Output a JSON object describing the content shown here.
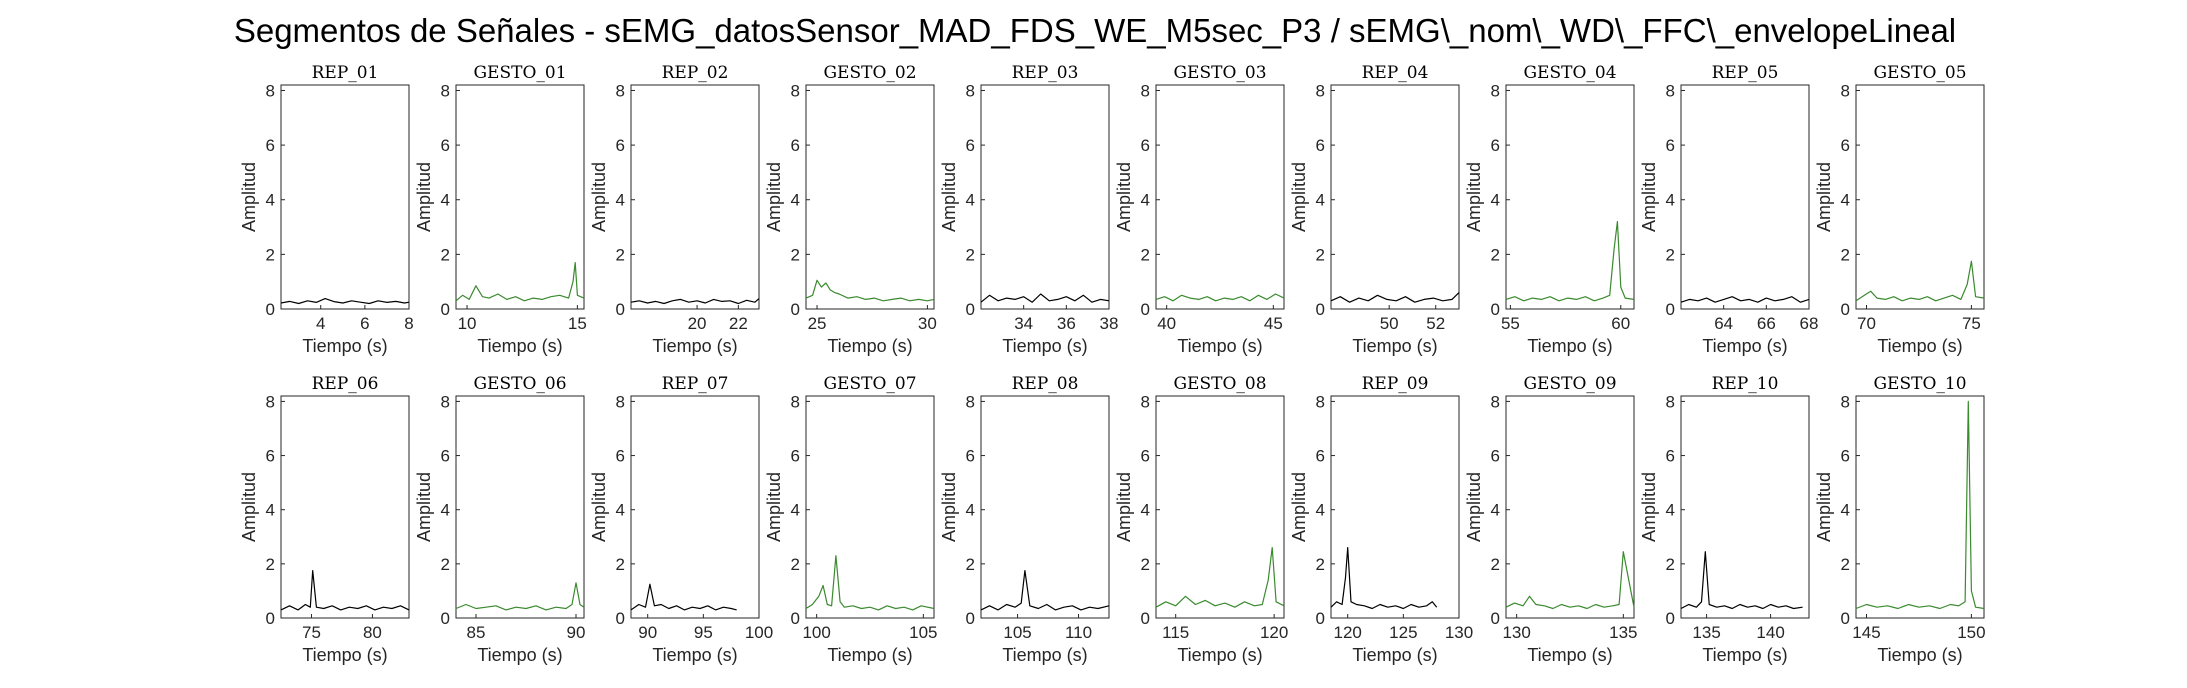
{
  "figure": {
    "title": "Segmentos de Señales - sEMG_datosSensor_MAD_FDS_WE_M5sec_P3 / sEMG\\_nom\\_WD\\_FFC\\_envelopeLineal"
  },
  "colors": {
    "rep": "#000000",
    "gesto": "#3a8a2e",
    "axis": "#262626"
  },
  "chart_data": [
    {
      "type": "line",
      "title": "REP_01",
      "xlabel": "Tiempo (s)",
      "ylabel": "Amplitud",
      "xlim": [
        2.2,
        8
      ],
      "ylim": [
        0,
        8.2
      ],
      "xticks": [
        4,
        6,
        8
      ],
      "yticks": [
        0,
        2,
        4,
        6,
        8
      ],
      "color": "#000000",
      "x": [
        2.2,
        2.6,
        3.0,
        3.4,
        3.8,
        4.2,
        4.6,
        5.0,
        5.4,
        5.8,
        6.2,
        6.6,
        7.0,
        7.4,
        7.8,
        8.0
      ],
      "y": [
        0.22,
        0.28,
        0.2,
        0.3,
        0.24,
        0.38,
        0.27,
        0.22,
        0.3,
        0.25,
        0.2,
        0.3,
        0.24,
        0.28,
        0.22,
        0.25
      ]
    },
    {
      "type": "line",
      "title": "GESTO_01",
      "xlabel": "Tiempo (s)",
      "ylabel": "Amplitud",
      "xlim": [
        9.5,
        15.3
      ],
      "ylim": [
        0,
        8.2
      ],
      "xticks": [
        10,
        15
      ],
      "yticks": [
        0,
        2,
        4,
        6,
        8
      ],
      "color": "#3a8a2e",
      "x": [
        9.5,
        9.8,
        10.1,
        10.4,
        10.7,
        11.0,
        11.4,
        11.8,
        12.2,
        12.6,
        13.0,
        13.4,
        13.8,
        14.2,
        14.6,
        14.8,
        14.9,
        15.0,
        15.3
      ],
      "y": [
        0.3,
        0.5,
        0.35,
        0.85,
        0.45,
        0.4,
        0.55,
        0.35,
        0.45,
        0.3,
        0.4,
        0.35,
        0.45,
        0.5,
        0.4,
        1.0,
        1.7,
        0.5,
        0.4
      ]
    },
    {
      "type": "line",
      "title": "REP_02",
      "xlabel": "Tiempo (s)",
      "ylabel": "Amplitud",
      "xlim": [
        16.8,
        23
      ],
      "ylim": [
        0,
        8.2
      ],
      "xticks": [
        20,
        22
      ],
      "yticks": [
        0,
        2,
        4,
        6,
        8
      ],
      "color": "#000000",
      "x": [
        16.8,
        17.2,
        17.6,
        18.0,
        18.4,
        18.8,
        19.2,
        19.6,
        20.0,
        20.4,
        20.8,
        21.2,
        21.6,
        22.0,
        22.4,
        22.8,
        23.0
      ],
      "y": [
        0.25,
        0.3,
        0.22,
        0.28,
        0.2,
        0.3,
        0.35,
        0.25,
        0.3,
        0.22,
        0.35,
        0.28,
        0.3,
        0.2,
        0.32,
        0.25,
        0.38
      ]
    },
    {
      "type": "line",
      "title": "GESTO_02",
      "xlabel": "Tiempo (s)",
      "ylabel": "Amplitud",
      "xlim": [
        24.5,
        30.3
      ],
      "ylim": [
        0,
        8.2
      ],
      "xticks": [
        25,
        30
      ],
      "yticks": [
        0,
        2,
        4,
        6,
        8
      ],
      "color": "#3a8a2e",
      "x": [
        24.5,
        24.8,
        25.0,
        25.2,
        25.4,
        25.6,
        25.8,
        26.0,
        26.4,
        26.8,
        27.2,
        27.6,
        28.0,
        28.4,
        28.8,
        29.2,
        29.6,
        30.0,
        30.3
      ],
      "y": [
        0.4,
        0.5,
        1.05,
        0.8,
        0.95,
        0.7,
        0.6,
        0.55,
        0.4,
        0.45,
        0.35,
        0.4,
        0.3,
        0.35,
        0.4,
        0.3,
        0.35,
        0.3,
        0.35
      ]
    },
    {
      "type": "line",
      "title": "REP_03",
      "xlabel": "Tiempo (s)",
      "ylabel": "Amplitud",
      "xlim": [
        32,
        38
      ],
      "ylim": [
        0,
        8.2
      ],
      "xticks": [
        34,
        36,
        38
      ],
      "yticks": [
        0,
        2,
        4,
        6,
        8
      ],
      "color": "#000000",
      "x": [
        32,
        32.4,
        32.8,
        33.2,
        33.6,
        34.0,
        34.4,
        34.8,
        35.2,
        35.6,
        36.0,
        36.4,
        36.8,
        37.2,
        37.6,
        38.0
      ],
      "y": [
        0.25,
        0.5,
        0.3,
        0.4,
        0.35,
        0.45,
        0.25,
        0.55,
        0.3,
        0.35,
        0.45,
        0.3,
        0.5,
        0.25,
        0.35,
        0.3
      ]
    },
    {
      "type": "line",
      "title": "GESTO_03",
      "xlabel": "Tiempo (s)",
      "ylabel": "Amplitud",
      "xlim": [
        39.5,
        45.5
      ],
      "ylim": [
        0,
        8.2
      ],
      "xticks": [
        40,
        45
      ],
      "yticks": [
        0,
        2,
        4,
        6,
        8
      ],
      "color": "#3a8a2e",
      "x": [
        39.5,
        39.9,
        40.3,
        40.7,
        41.1,
        41.5,
        41.9,
        42.3,
        42.7,
        43.1,
        43.5,
        43.9,
        44.3,
        44.7,
        45.1,
        45.5
      ],
      "y": [
        0.35,
        0.45,
        0.3,
        0.5,
        0.4,
        0.35,
        0.45,
        0.3,
        0.4,
        0.35,
        0.45,
        0.3,
        0.5,
        0.35,
        0.55,
        0.4
      ]
    },
    {
      "type": "line",
      "title": "REP_04",
      "xlabel": "Tiempo (s)",
      "ylabel": "Amplitud",
      "xlim": [
        47.5,
        53
      ],
      "ylim": [
        0,
        8.2
      ],
      "xticks": [
        50,
        52
      ],
      "yticks": [
        0,
        2,
        4,
        6,
        8
      ],
      "color": "#000000",
      "x": [
        47.5,
        47.9,
        48.3,
        48.7,
        49.1,
        49.5,
        49.9,
        50.3,
        50.7,
        51.1,
        51.5,
        51.9,
        52.3,
        52.7,
        53.0
      ],
      "y": [
        0.3,
        0.45,
        0.25,
        0.4,
        0.3,
        0.5,
        0.35,
        0.3,
        0.45,
        0.25,
        0.35,
        0.4,
        0.3,
        0.35,
        0.6
      ]
    },
    {
      "type": "line",
      "title": "GESTO_04",
      "xlabel": "Tiempo (s)",
      "ylabel": "Amplitud",
      "xlim": [
        54.8,
        60.6
      ],
      "ylim": [
        0,
        8.2
      ],
      "xticks": [
        55,
        60
      ],
      "yticks": [
        0,
        2,
        4,
        6,
        8
      ],
      "color": "#3a8a2e",
      "x": [
        54.8,
        55.2,
        55.6,
        56.0,
        56.4,
        56.8,
        57.2,
        57.6,
        58.0,
        58.4,
        58.8,
        59.2,
        59.5,
        59.7,
        59.85,
        60.0,
        60.2,
        60.6
      ],
      "y": [
        0.35,
        0.45,
        0.3,
        0.4,
        0.35,
        0.45,
        0.3,
        0.4,
        0.35,
        0.45,
        0.3,
        0.4,
        0.5,
        2.2,
        3.2,
        0.8,
        0.4,
        0.35
      ]
    },
    {
      "type": "line",
      "title": "REP_05",
      "xlabel": "Tiempo (s)",
      "ylabel": "Amplitud",
      "xlim": [
        62,
        68
      ],
      "ylim": [
        0,
        8.2
      ],
      "xticks": [
        64,
        66,
        68
      ],
      "yticks": [
        0,
        2,
        4,
        6,
        8
      ],
      "color": "#000000",
      "x": [
        62,
        62.4,
        62.8,
        63.2,
        63.6,
        64.0,
        64.4,
        64.8,
        65.2,
        65.6,
        66.0,
        66.4,
        66.8,
        67.2,
        67.6,
        68.0
      ],
      "y": [
        0.25,
        0.35,
        0.3,
        0.4,
        0.25,
        0.35,
        0.45,
        0.3,
        0.35,
        0.25,
        0.4,
        0.3,
        0.35,
        0.45,
        0.25,
        0.35
      ]
    },
    {
      "type": "line",
      "title": "GESTO_05",
      "xlabel": "Tiempo (s)",
      "ylabel": "Amplitud",
      "xlim": [
        69.5,
        75.6
      ],
      "ylim": [
        0,
        8.2
      ],
      "xticks": [
        70,
        75
      ],
      "yticks": [
        0,
        2,
        4,
        6,
        8
      ],
      "color": "#3a8a2e",
      "x": [
        69.5,
        69.9,
        70.2,
        70.5,
        70.9,
        71.3,
        71.7,
        72.1,
        72.5,
        72.9,
        73.3,
        73.7,
        74.1,
        74.5,
        74.8,
        75.0,
        75.2,
        75.6
      ],
      "y": [
        0.3,
        0.5,
        0.65,
        0.4,
        0.35,
        0.45,
        0.3,
        0.4,
        0.35,
        0.45,
        0.3,
        0.4,
        0.5,
        0.35,
        0.9,
        1.75,
        0.45,
        0.4
      ]
    },
    {
      "type": "line",
      "title": "REP_06",
      "xlabel": "Tiempo (s)",
      "ylabel": "Amplitud",
      "xlim": [
        72.5,
        83
      ],
      "ylim": [
        0,
        8.2
      ],
      "xticks": [
        75,
        80
      ],
      "yticks": [
        0,
        2,
        4,
        6,
        8
      ],
      "color": "#000000",
      "x": [
        72.5,
        73.2,
        73.9,
        74.5,
        74.9,
        75.1,
        75.4,
        76.0,
        76.7,
        77.4,
        78.1,
        78.8,
        79.5,
        80.2,
        80.9,
        81.6,
        82.3,
        83.0
      ],
      "y": [
        0.3,
        0.45,
        0.3,
        0.5,
        0.4,
        1.75,
        0.4,
        0.35,
        0.45,
        0.3,
        0.4,
        0.35,
        0.45,
        0.3,
        0.4,
        0.35,
        0.45,
        0.3
      ]
    },
    {
      "type": "line",
      "title": "GESTO_06",
      "xlabel": "Tiempo (s)",
      "ylabel": "Amplitud",
      "xlim": [
        84,
        90.4
      ],
      "ylim": [
        0,
        8.2
      ],
      "xticks": [
        85,
        90
      ],
      "yticks": [
        0,
        2,
        4,
        6,
        8
      ],
      "color": "#3a8a2e",
      "x": [
        84,
        84.5,
        85,
        85.5,
        86,
        86.5,
        87,
        87.5,
        88,
        88.5,
        89,
        89.5,
        89.8,
        90.0,
        90.2,
        90.4
      ],
      "y": [
        0.35,
        0.5,
        0.35,
        0.4,
        0.45,
        0.3,
        0.4,
        0.35,
        0.45,
        0.3,
        0.4,
        0.35,
        0.5,
        1.3,
        0.5,
        0.4
      ]
    },
    {
      "type": "line",
      "title": "REP_07",
      "xlabel": "Tiempo (s)",
      "ylabel": "Amplitud",
      "xlim": [
        88.5,
        100
      ],
      "ylim": [
        0,
        8.2
      ],
      "xticks": [
        90,
        95,
        100
      ],
      "yticks": [
        0,
        2,
        4,
        6,
        8
      ],
      "color": "#000000",
      "x": [
        88.5,
        89.2,
        89.8,
        90.2,
        90.6,
        91.2,
        91.9,
        92.6,
        93.3,
        94.0,
        94.7,
        95.4,
        96.1,
        96.8,
        97.5,
        98.0
      ],
      "y": [
        0.3,
        0.5,
        0.4,
        1.25,
        0.45,
        0.5,
        0.35,
        0.45,
        0.3,
        0.4,
        0.35,
        0.45,
        0.3,
        0.4,
        0.35,
        0.3
      ]
    },
    {
      "type": "line",
      "title": "GESTO_07",
      "xlabel": "Tiempo (s)",
      "ylabel": "Amplitud",
      "xlim": [
        99.5,
        105.5
      ],
      "ylim": [
        0,
        8.2
      ],
      "xticks": [
        100,
        105
      ],
      "yticks": [
        0,
        2,
        4,
        6,
        8
      ],
      "color": "#3a8a2e",
      "x": [
        99.5,
        99.8,
        100.1,
        100.3,
        100.5,
        100.7,
        100.9,
        101.1,
        101.3,
        101.7,
        102.1,
        102.5,
        102.9,
        103.3,
        103.7,
        104.1,
        104.5,
        104.9,
        105.5
      ],
      "y": [
        0.35,
        0.5,
        0.8,
        1.2,
        0.5,
        0.45,
        2.3,
        0.6,
        0.4,
        0.45,
        0.35,
        0.4,
        0.3,
        0.45,
        0.35,
        0.4,
        0.3,
        0.45,
        0.35
      ]
    },
    {
      "type": "line",
      "title": "REP_08",
      "xlabel": "Tiempo (s)",
      "ylabel": "Amplitud",
      "xlim": [
        102,
        112.5
      ],
      "ylim": [
        0,
        8.2
      ],
      "xticks": [
        105,
        110
      ],
      "yticks": [
        0,
        2,
        4,
        6,
        8
      ],
      "color": "#000000",
      "x": [
        102,
        102.7,
        103.4,
        104.1,
        104.8,
        105.3,
        105.6,
        106.0,
        106.7,
        107.4,
        108.1,
        108.8,
        109.5,
        110.2,
        110.9,
        111.6,
        112.5
      ],
      "y": [
        0.3,
        0.45,
        0.3,
        0.5,
        0.4,
        0.55,
        1.75,
        0.45,
        0.35,
        0.5,
        0.3,
        0.4,
        0.45,
        0.3,
        0.4,
        0.35,
        0.45
      ]
    },
    {
      "type": "line",
      "title": "GESTO_08",
      "xlabel": "Tiempo (s)",
      "ylabel": "Amplitud",
      "xlim": [
        114,
        120.5
      ],
      "ylim": [
        0,
        8.2
      ],
      "xticks": [
        115,
        120
      ],
      "yticks": [
        0,
        2,
        4,
        6,
        8
      ],
      "color": "#3a8a2e",
      "x": [
        114,
        114.5,
        115,
        115.5,
        116,
        116.5,
        117,
        117.5,
        118,
        118.5,
        119,
        119.4,
        119.7,
        119.9,
        120.1,
        120.5
      ],
      "y": [
        0.4,
        0.6,
        0.45,
        0.8,
        0.5,
        0.65,
        0.45,
        0.55,
        0.4,
        0.6,
        0.45,
        0.5,
        1.4,
        2.6,
        0.6,
        0.45
      ]
    },
    {
      "type": "line",
      "title": "REP_09",
      "xlabel": "Tiempo (s)",
      "ylabel": "Amplitud",
      "xlim": [
        118.5,
        130
      ],
      "ylim": [
        0,
        8.2
      ],
      "xticks": [
        120,
        125,
        130
      ],
      "yticks": [
        0,
        2,
        4,
        6,
        8
      ],
      "color": "#000000",
      "x": [
        118.5,
        119.0,
        119.5,
        119.8,
        120.0,
        120.3,
        120.8,
        121.5,
        122.2,
        122.9,
        123.6,
        124.3,
        125.0,
        125.7,
        126.4,
        127.1,
        127.6,
        128.0
      ],
      "y": [
        0.4,
        0.6,
        0.5,
        1.5,
        2.6,
        0.6,
        0.5,
        0.45,
        0.35,
        0.5,
        0.4,
        0.45,
        0.35,
        0.5,
        0.4,
        0.45,
        0.6,
        0.4
      ]
    },
    {
      "type": "line",
      "title": "GESTO_09",
      "xlabel": "Tiempo (s)",
      "ylabel": "Amplitud",
      "xlim": [
        129.5,
        135.5
      ],
      "ylim": [
        0,
        8.2
      ],
      "xticks": [
        130,
        135
      ],
      "yticks": [
        0,
        2,
        4,
        6,
        8
      ],
      "color": "#3a8a2e",
      "x": [
        129.5,
        129.9,
        130.3,
        130.6,
        130.9,
        131.3,
        131.7,
        132.1,
        132.5,
        132.9,
        133.3,
        133.7,
        134.1,
        134.5,
        134.8,
        135.0,
        135.5
      ],
      "y": [
        0.4,
        0.55,
        0.45,
        0.8,
        0.5,
        0.45,
        0.35,
        0.5,
        0.4,
        0.45,
        0.35,
        0.5,
        0.4,
        0.45,
        0.5,
        2.45,
        0.4
      ]
    },
    {
      "type": "line",
      "title": "REP_10",
      "xlabel": "Tiempo (s)",
      "ylabel": "Amplitud",
      "xlim": [
        133,
        143
      ],
      "ylim": [
        0,
        8.2
      ],
      "xticks": [
        135,
        140
      ],
      "yticks": [
        0,
        2,
        4,
        6,
        8
      ],
      "color": "#000000",
      "x": [
        133,
        133.6,
        134.2,
        134.6,
        134.9,
        135.2,
        135.8,
        136.4,
        137.0,
        137.6,
        138.2,
        138.8,
        139.4,
        140.0,
        140.6,
        141.2,
        141.8,
        142.5
      ],
      "y": [
        0.35,
        0.5,
        0.4,
        0.6,
        2.45,
        0.5,
        0.4,
        0.45,
        0.35,
        0.5,
        0.4,
        0.45,
        0.35,
        0.5,
        0.4,
        0.45,
        0.35,
        0.4
      ]
    },
    {
      "type": "line",
      "title": "GESTO_10",
      "xlabel": "Tiempo (s)",
      "ylabel": "Amplitud",
      "xlim": [
        144.5,
        150.6
      ],
      "ylim": [
        0,
        8.2
      ],
      "xticks": [
        145,
        150
      ],
      "yticks": [
        0,
        2,
        4,
        6,
        8
      ],
      "color": "#3a8a2e",
      "x": [
        144.5,
        145.0,
        145.5,
        146.0,
        146.5,
        147.0,
        147.5,
        148.0,
        148.5,
        149.0,
        149.4,
        149.7,
        149.85,
        150.0,
        150.2,
        150.6
      ],
      "y": [
        0.35,
        0.5,
        0.4,
        0.45,
        0.35,
        0.5,
        0.4,
        0.45,
        0.35,
        0.5,
        0.45,
        0.6,
        8.0,
        1.0,
        0.4,
        0.35
      ]
    }
  ]
}
